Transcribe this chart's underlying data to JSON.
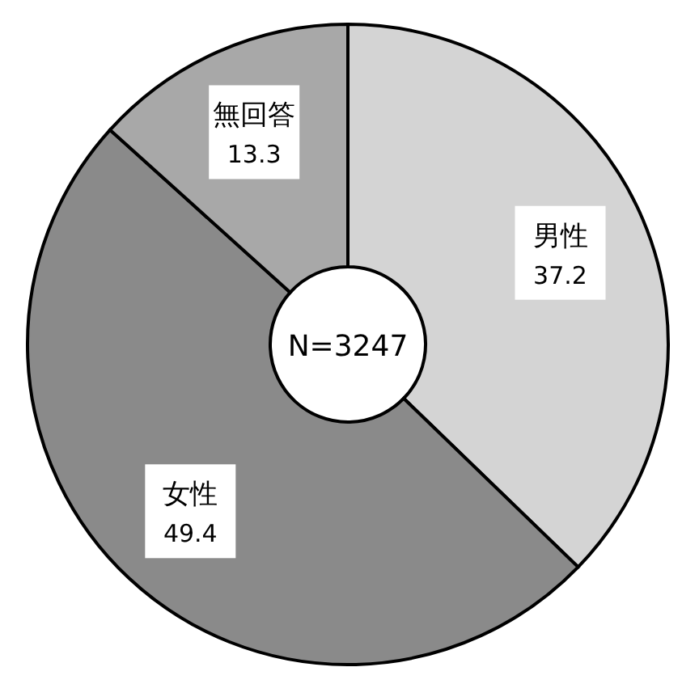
{
  "chart_data": {
    "type": "donut",
    "categories": [
      "男性",
      "女性",
      "無回答"
    ],
    "values": [
      37.2,
      49.4,
      13.3
    ],
    "colors": [
      "#d4d4d4",
      "#8a8a8a",
      "#a8a8a8"
    ],
    "data_labels": true,
    "annotations": [
      "N=3247"
    ]
  }
}
